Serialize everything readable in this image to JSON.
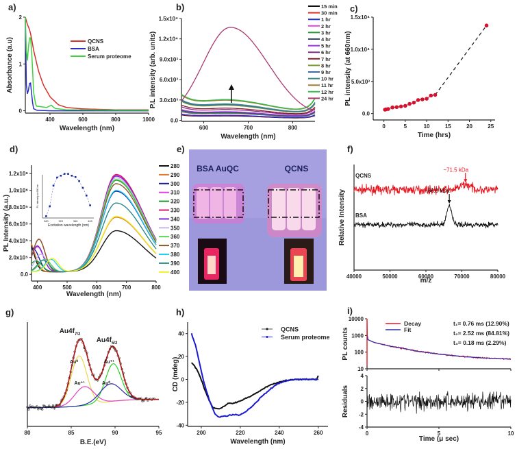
{
  "chart_data": [
    {
      "panel": "a)",
      "type": "line",
      "xlabel": "Wavelength (nm)",
      "ylabel": "Absorbance (a.u)",
      "xlim": [
        250,
        1000
      ],
      "ylim": [
        -0.05,
        2
      ],
      "xticks": [
        400,
        600,
        800,
        1000
      ],
      "xticklabels": [
        "400",
        "600",
        "800",
        "1000"
      ],
      "yticks": [
        0,
        1,
        2
      ],
      "yticklabels": [
        "0",
        "1",
        "2"
      ],
      "legend": "center-right",
      "series": [
        {
          "name": "QCNS",
          "color": "#d9302c",
          "points": [
            [
              250,
              2
            ],
            [
              262,
              1.85
            ],
            [
              275,
              1.74
            ],
            [
              285,
              1.6
            ],
            [
              300,
              1.3
            ],
            [
              330,
              0.85
            ],
            [
              360,
              0.55
            ],
            [
              400,
              0.3
            ],
            [
              450,
              0.13
            ],
            [
              500,
              0.07
            ],
            [
              600,
              0.04
            ],
            [
              800,
              0.02
            ],
            [
              1000,
              0.02
            ]
          ]
        },
        {
          "name": "BSA",
          "color": "#2a2fc8",
          "points": [
            [
              250,
              1.95
            ],
            [
              254,
              0.7
            ],
            [
              260,
              0.33
            ],
            [
              270,
              0.45
            ],
            [
              279,
              0.68
            ],
            [
              290,
              0.3
            ],
            [
              298,
              0.05
            ],
            [
              320,
              0.01
            ],
            [
              400,
              0
            ],
            [
              1000,
              0
            ]
          ]
        },
        {
          "name": "Serum proteome",
          "color": "#3ed23e",
          "points": [
            [
              250,
              2
            ],
            [
              256,
              1.3
            ],
            [
              261,
              1.0
            ],
            [
              270,
              1.4
            ],
            [
              279,
              1.67
            ],
            [
              290,
              1.2
            ],
            [
              300,
              0.4
            ],
            [
              315,
              0.1
            ],
            [
              380,
              0.07
            ],
            [
              408,
              0.12
            ],
            [
              430,
              0.05
            ],
            [
              500,
              0.02
            ],
            [
              1000,
              0.01
            ]
          ]
        }
      ]
    },
    {
      "panel": "b)",
      "type": "line",
      "xlabel": "Wavelength (nm)",
      "ylabel": "P.L intensity (arb. units)",
      "xlim": [
        550,
        850
      ],
      "ylim": [
        -150,
        15000
      ],
      "xticks": [
        600,
        700,
        800
      ],
      "xticklabels": [
        "600",
        "700",
        "800"
      ],
      "yticks": [
        0,
        3000,
        6000,
        9000,
        12000,
        15000
      ],
      "yticklabels": [
        "0.0",
        "3.0x10³",
        "6.0x10³",
        "9.0x10³",
        "1.2x10⁴",
        "1.5x10⁴"
      ],
      "legend": "right",
      "annotation": "arrow-up",
      "series": [
        {
          "name": "15 min",
          "color": "#111111",
          "peak_660": 600
        },
        {
          "name": "30 min",
          "color": "#e0302a",
          "peak_660": 650
        },
        {
          "name": "1 hr",
          "color": "#2233dd",
          "peak_660": 700
        },
        {
          "name": "2 hr",
          "color": "#e040e0",
          "peak_660": 950
        },
        {
          "name": "3 hr",
          "color": "#2a9a3a",
          "peak_660": 1000
        },
        {
          "name": "4 hr",
          "color": "#3a4a6a",
          "peak_660": 1100
        },
        {
          "name": "5 hr",
          "color": "#9a30e0",
          "peak_660": 1200
        },
        {
          "name": "6 hr",
          "color": "#8a2a8a",
          "peak_660": 1500
        },
        {
          "name": "7 hr",
          "color": "#8a1a2a",
          "peak_660": 1700
        },
        {
          "name": "8 hr",
          "color": "#7a9a2a",
          "peak_660": 2100
        },
        {
          "name": "9 hr",
          "color": "#3a6ab0",
          "peak_660": 2200
        },
        {
          "name": "10 hr",
          "color": "#3a8a8a",
          "peak_660": 2300
        },
        {
          "name": "11 hr",
          "color": "#a08030",
          "peak_660": 2800
        },
        {
          "name": "12 hr",
          "color": "#30c050",
          "peak_660": 2900
        },
        {
          "name": "24 hr",
          "color": "#a83a70",
          "peak_660": 13700
        }
      ]
    },
    {
      "panel": "c)",
      "type": "scatter",
      "xlabel": "Time (hrs)",
      "ylabel": "PL intensity (at 660nm)",
      "xlim": [
        -2.5,
        26
      ],
      "ylim": [
        -1000,
        15000
      ],
      "xticks": [
        0,
        5,
        10,
        15,
        20,
        25
      ],
      "xticklabels": [
        "0",
        "5",
        "10",
        "15",
        "20",
        "25"
      ],
      "yticks": [
        0,
        5000,
        10000,
        15000
      ],
      "yticklabels": [
        "0.0",
        "5.0x10³",
        "1.0x10⁴",
        "1.5x10⁴"
      ],
      "marker_color": "#d4112e",
      "connector": "dashed",
      "x": [
        0.25,
        0.5,
        1,
        2,
        3,
        4,
        5,
        6,
        7,
        8,
        9,
        10,
        11,
        12,
        24
      ],
      "y": [
        600,
        650,
        700,
        950,
        1000,
        1100,
        1200,
        1500,
        1700,
        2100,
        2200,
        2300,
        2800,
        2900,
        13700
      ]
    },
    {
      "panel": "d)",
      "type": "line",
      "xlabel": "Wavelength (nm)",
      "ylabel": "PL Intensity (a.u.)",
      "xlim": [
        380,
        800
      ],
      "ylim": [
        -80000,
        1300000
      ],
      "xticks": [
        400,
        500,
        600,
        700,
        800
      ],
      "xticklabels": [
        "400",
        "500",
        "600",
        "700",
        "800"
      ],
      "yticks": [
        0,
        200000,
        400000,
        600000,
        800000,
        1000000,
        1200000
      ],
      "yticklabels": [
        "0.0",
        "2.0x10⁵",
        "4.0x10⁵",
        "6.0x10⁵",
        "8.0x10⁵",
        "1.0x10⁶",
        "1.2x10⁶"
      ],
      "legend": "right",
      "series": [
        {
          "name": "280",
          "color": "#111111",
          "peak_665": 490000,
          "short_peak": [
            365,
            420000
          ]
        },
        {
          "name": "290",
          "color": "#e07a30",
          "peak_665": 650000,
          "short_peak": [
            370,
            380000
          ]
        },
        {
          "name": "300",
          "color": "#1a1a9a",
          "peak_665": 960000,
          "short_peak": [
            385,
            280000
          ]
        },
        {
          "name": "310",
          "color": "#e040e0",
          "peak_665": 1150000,
          "short_peak": [
            400,
            300000
          ]
        },
        {
          "name": "320",
          "color": "#1a9a2a",
          "peak_665": 1090000,
          "short_peak": [
            395,
            130000
          ]
        },
        {
          "name": "330",
          "color": "#d81a6a",
          "peak_665": 1160000,
          "short_peak": [
            405,
            390000
          ]
        },
        {
          "name": "340",
          "color": "#7a2ad0",
          "peak_665": 1140000,
          "short_peak": [
            400,
            310000
          ]
        },
        {
          "name": "350",
          "color": "#c8b8f0",
          "peak_665": 1120000,
          "short_peak": [
            412,
            210000
          ]
        },
        {
          "name": "360",
          "color": "#5ad05a",
          "peak_665": 1100000,
          "short_peak": [
            425,
            150000
          ]
        },
        {
          "name": "370",
          "color": "#8a5a2a",
          "peak_665": 1050000,
          "short_peak": [
            405,
            390000
          ]
        },
        {
          "name": "380",
          "color": "#20d0f0",
          "peak_665": 970000,
          "short_peak": [
            445,
            150000
          ]
        },
        {
          "name": "390",
          "color": "#2a8a8a",
          "peak_665": 820000,
          "short_peak": [
            420,
            140000
          ]
        },
        {
          "name": "400",
          "color": "#f0f020",
          "peak_665": 660000,
          "short_peak": [
            450,
            160000
          ]
        }
      ],
      "inset": {
        "type": "scatter",
        "xlabel": "Excitation wavelength (nm)",
        "ylabel": "PL Intensity at 660 nm",
        "xlim": [
          270,
          410
        ],
        "ylim": [
          0.8,
          5.6
        ],
        "xticks": [
          280,
          320,
          360,
          400
        ],
        "xticklabels": [
          "280",
          "320",
          "360",
          "400"
        ],
        "marker_color": "#1a2aa0",
        "x": [
          280,
          290,
          300,
          310,
          320,
          330,
          340,
          350,
          360,
          370,
          380,
          390,
          400
        ],
        "y": [
          1.0,
          2.1,
          4.4,
          5.3,
          5.5,
          5.7,
          5.7,
          5.5,
          5.35,
          4.9,
          4.15,
          3.3,
          2.2
        ]
      }
    },
    {
      "panel": "f)",
      "type": "line",
      "xlabel": "m/z",
      "ylabel": "Relative Intensity",
      "xlim": [
        40000,
        80000
      ],
      "ylim": [
        0,
        1
      ],
      "xticks": [
        40000,
        50000,
        60000,
        70000,
        80000
      ],
      "xticklabels": [
        "40000",
        "50000",
        "60000",
        "70000",
        "80000"
      ],
      "series": [
        {
          "name": "QCNS",
          "color": "#e8141e",
          "baseline": 0.76,
          "peak_mz": 71000,
          "peak_height": 0.05,
          "annotation": "~71.5 kDa"
        },
        {
          "name": "BSA",
          "color": "#111111",
          "baseline": 0.43,
          "peak_mz": 66500,
          "peak_height": 0.18,
          "annotation": "~66.5 kDa"
        }
      ]
    },
    {
      "panel": "g)",
      "type": "line",
      "xlabel": "B.E.(eV)",
      "ylabel": "",
      "xlim": [
        80,
        95
      ],
      "ylim": [
        0,
        1
      ],
      "xticks": [
        80,
        85,
        90,
        95
      ],
      "xticklabels": [
        "80",
        "85",
        "90",
        "95"
      ],
      "baseline": [
        0.18,
        0.26
      ],
      "peak_labels": [
        {
          "text": "Au4f",
          "sub": "7/2"
        },
        {
          "text": "Au4f",
          "sub": "5/2"
        }
      ],
      "components": [
        {
          "label": "Au⁰",
          "color": "#e8d84a",
          "center": 85.9,
          "amplitude": 0.48,
          "width": 0.9
        },
        {
          "label": "Au⁺¹",
          "color": "#e040c8",
          "center": 86.5,
          "amplitude": 0.18,
          "width": 1.1
        },
        {
          "label": "Au⁺¹",
          "color": "#2ad02a",
          "center": 89.8,
          "amplitude": 0.36,
          "width": 0.9
        },
        {
          "label": "Au⁰",
          "color": "#2a2aa8",
          "center": 89.5,
          "amplitude": 0.17,
          "width": 1.2
        }
      ],
      "envelope_color": "#b01818",
      "data_color": "#111111"
    },
    {
      "panel": "h)",
      "type": "line",
      "xlabel": "Wavelength (nm)",
      "ylabel": "CD (mdeg)",
      "xlim": [
        193,
        265
      ],
      "ylim": [
        -41,
        50
      ],
      "xticks": [
        200,
        220,
        240,
        260
      ],
      "xticklabels": [
        "200",
        "220",
        "240",
        "260"
      ],
      "yticks": [
        40,
        20,
        0,
        -20,
        -40
      ],
      "yticklabels": [
        "40",
        "20",
        "0",
        "-20",
        "-40"
      ],
      "legend": "top-right",
      "series": [
        {
          "name": "QCNS",
          "color": "#111111",
          "legend_color": "#888888",
          "points": [
            [
              195,
              15
            ],
            [
              198,
              8
            ],
            [
              200,
              0
            ],
            [
              202,
              -10
            ],
            [
              204,
              -18
            ],
            [
              206,
              -25
            ],
            [
              208,
              -25.5
            ],
            [
              210,
              -25
            ],
            [
              212,
              -23
            ],
            [
              213.5,
              -21
            ],
            [
              216,
              -21
            ],
            [
              220,
              -19
            ],
            [
              225,
              -15
            ],
            [
              230,
              -10
            ],
            [
              235,
              -5
            ],
            [
              240,
              -2
            ],
            [
              245,
              -0.5
            ],
            [
              250,
              0
            ],
            [
              255,
              0
            ],
            [
              259,
              0
            ],
            [
              260,
              3
            ]
          ]
        },
        {
          "name": "Serum proteome",
          "color": "#1a1ad0",
          "legend_color": "#7a7af0",
          "points": [
            [
              195,
              40
            ],
            [
              197,
              30
            ],
            [
              199,
              15
            ],
            [
              201,
              0
            ],
            [
              203,
              -12
            ],
            [
              205,
              -22
            ],
            [
              207,
              -30
            ],
            [
              209,
              -33
            ],
            [
              212,
              -32
            ],
            [
              216,
              -31
            ],
            [
              220,
              -31
            ],
            [
              223,
              -28
            ],
            [
              227,
              -22
            ],
            [
              231,
              -15
            ],
            [
              235,
              -9
            ],
            [
              239,
              -4
            ],
            [
              243,
              -1.5
            ],
            [
              247,
              0
            ],
            [
              255,
              0
            ],
            [
              260,
              0
            ]
          ]
        }
      ]
    },
    {
      "panel": "i)",
      "type": "line",
      "xlabel": "",
      "ylabel": "PL counts",
      "xlim": [
        0,
        10
      ],
      "ylim": [
        10,
        10000
      ],
      "log": true,
      "yticks": [
        10,
        100,
        1000,
        10000
      ],
      "yticklabels": [
        "10",
        "100",
        "1000",
        "10000"
      ],
      "xticks": [
        0,
        5,
        10
      ],
      "legend": "top-center",
      "series": [
        {
          "name": "Decay",
          "color": "#e8141e"
        },
        {
          "name": "Fit",
          "color": "#2a2aa8"
        }
      ],
      "fit_points": [
        [
          0,
          10000
        ],
        [
          0.02,
          1000
        ],
        [
          0.06,
          560
        ],
        [
          0.5,
          380
        ],
        [
          1,
          300
        ],
        [
          1.7,
          220
        ],
        [
          2.5,
          170
        ],
        [
          3.5,
          112
        ],
        [
          5,
          76
        ],
        [
          6.5,
          56
        ],
        [
          8,
          45
        ],
        [
          10,
          38
        ]
      ],
      "annotations": [
        "t₁= 0.76 ms (12.90%)",
        "t₂= 2.52  ms (84.81%)",
        "t₃= 0.18 ms (2.29%)"
      ]
    },
    {
      "panel": "",
      "type": "line",
      "xlabel": "Time (μ sec)",
      "ylabel": "Residuals",
      "xlim": [
        0,
        10
      ],
      "ylim": [
        -4,
        4
      ],
      "xticks": [
        0,
        5,
        10
      ],
      "xticklabels": [
        "0",
        "5",
        "10"
      ],
      "yticks": [
        4,
        2,
        0,
        -2,
        -4
      ],
      "yticklabels": [
        "4",
        "2",
        "0",
        "-2",
        "-4"
      ],
      "series": [
        {
          "color": "#111111",
          "noise_sd": 1.0
        }
      ]
    }
  ],
  "panel_e": {
    "label": "e)",
    "captions": [
      "BSA AuQC",
      "QCNS"
    ],
    "background": "#9d98dc",
    "band_color": "#f08ad0"
  }
}
